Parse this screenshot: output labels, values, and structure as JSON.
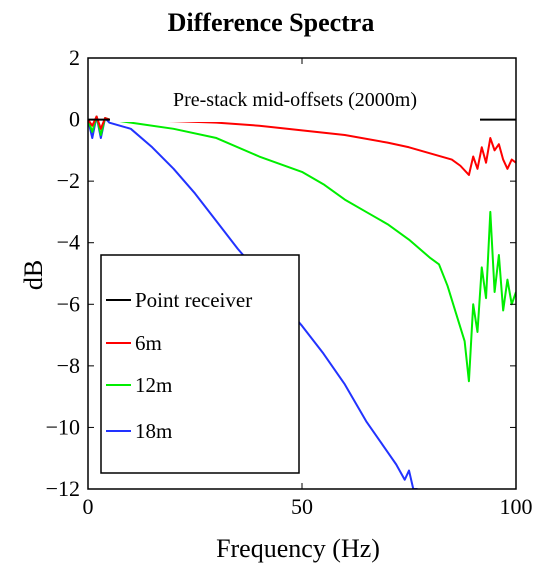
{
  "chart_data": {
    "type": "line",
    "title": "Difference Spectra",
    "annotation": "Pre-stack mid-offsets (2000m)",
    "xlabel": "Frequency (Hz)",
    "ylabel": "dB",
    "xlim": [
      0,
      100
    ],
    "ylim": [
      -12,
      2
    ],
    "xticks": [
      0,
      50,
      100
    ],
    "yticks": [
      2,
      0,
      -2,
      -4,
      -6,
      -8,
      -10,
      -12
    ],
    "xtick_labels": [
      "0",
      "50",
      "100"
    ],
    "ytick_labels": [
      "2",
      "0",
      "−2",
      "−4",
      "−6",
      "−8",
      "−10",
      "−12"
    ],
    "grid": false,
    "legend_position": "lower-left",
    "series": [
      {
        "name": "Point receiver",
        "color": "#000000",
        "x": [
          0,
          100
        ],
        "y": [
          0,
          0
        ]
      },
      {
        "name": "6m",
        "color": "#ff0000",
        "x": [
          0,
          1,
          2,
          3,
          4,
          5,
          10,
          20,
          30,
          40,
          50,
          60,
          70,
          75,
          80,
          85,
          87,
          89,
          90,
          91,
          92,
          93,
          94,
          95,
          96,
          97,
          98,
          99,
          100
        ],
        "y": [
          0,
          -0.2,
          0.1,
          -0.3,
          0.05,
          0,
          -0.02,
          -0.05,
          -0.1,
          -0.2,
          -0.35,
          -0.5,
          -0.75,
          -0.9,
          -1.1,
          -1.3,
          -1.5,
          -1.8,
          -1.2,
          -1.6,
          -0.9,
          -1.4,
          -0.6,
          -1.0,
          -0.8,
          -1.3,
          -1.6,
          -1.3,
          -1.4
        ]
      },
      {
        "name": "12m",
        "color": "#00ee00",
        "x": [
          0,
          1,
          2,
          3,
          4,
          5,
          10,
          20,
          30,
          40,
          50,
          55,
          60,
          65,
          70,
          75,
          80,
          82,
          84,
          86,
          88,
          89,
          90,
          91,
          92,
          93,
          94,
          95,
          96,
          97,
          98,
          99,
          100
        ],
        "y": [
          0,
          -0.4,
          0.1,
          -0.5,
          0.05,
          0,
          -0.1,
          -0.3,
          -0.6,
          -1.2,
          -1.7,
          -2.1,
          -2.6,
          -3.0,
          -3.4,
          -3.9,
          -4.5,
          -4.7,
          -5.4,
          -6.3,
          -7.2,
          -8.5,
          -6.0,
          -6.9,
          -4.8,
          -5.8,
          -3.0,
          -5.6,
          -4.4,
          -6.2,
          -5.2,
          -6.0,
          -5.6
        ]
      },
      {
        "name": "18m",
        "color": "#2233ff",
        "x": [
          0,
          1,
          2,
          3,
          4,
          5,
          10,
          15,
          20,
          25,
          30,
          35,
          40,
          45,
          50,
          55,
          60,
          65,
          70,
          72,
          74,
          75,
          76,
          77
        ],
        "y": [
          0,
          -0.6,
          0.1,
          -0.6,
          0.05,
          -0.1,
          -0.3,
          -0.9,
          -1.6,
          -2.4,
          -3.3,
          -4.2,
          -5.0,
          -5.9,
          -6.7,
          -7.6,
          -8.6,
          -9.8,
          -10.8,
          -11.2,
          -11.7,
          -11.4,
          -12.0,
          -12.0
        ]
      }
    ]
  }
}
